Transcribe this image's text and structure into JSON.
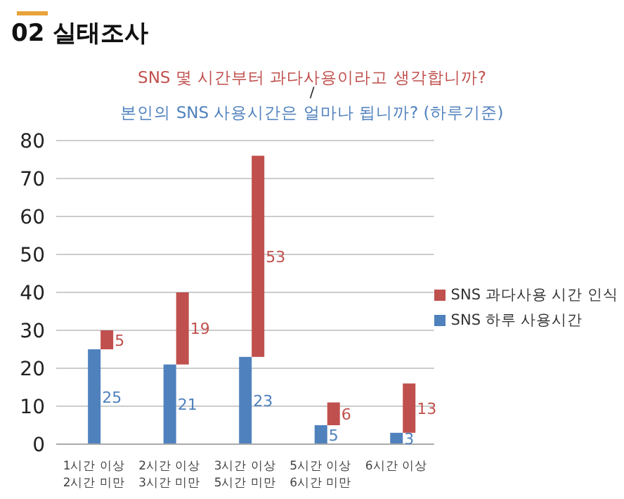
{
  "chart_data": {
    "type": "bar",
    "title": "SNS 몇 시간부터 과다사용이라고 생각합니까?",
    "subtitle": "본인의 SNS 사용시간은 얼마나 됩니까? (하루기준)",
    "annotations": [
      "02 실태조사",
      "/"
    ],
    "categories": [
      "1시간 이상\n2시간 미만",
      "2시간 이상\n3시간 미만",
      "3시간 이상\n5시간 미만",
      "5시간 이상\n6시간 미만",
      "6시간 이상"
    ],
    "series": [
      {
        "name": "SNS 하루 사용시간",
        "color": "#4f81bd",
        "values": [
          25,
          21,
          23,
          5,
          3
        ]
      },
      {
        "name": "SNS 과다사용 시간 인식",
        "color": "#c0504d",
        "values": [
          5,
          19,
          53,
          6,
          13
        ]
      }
    ],
    "stacked": true,
    "ylim": [
      0,
      80
    ],
    "yticks": [
      0,
      10,
      20,
      30,
      40,
      50,
      60,
      70,
      80
    ],
    "grid": "y",
    "legend": "right",
    "data_labels": true
  }
}
